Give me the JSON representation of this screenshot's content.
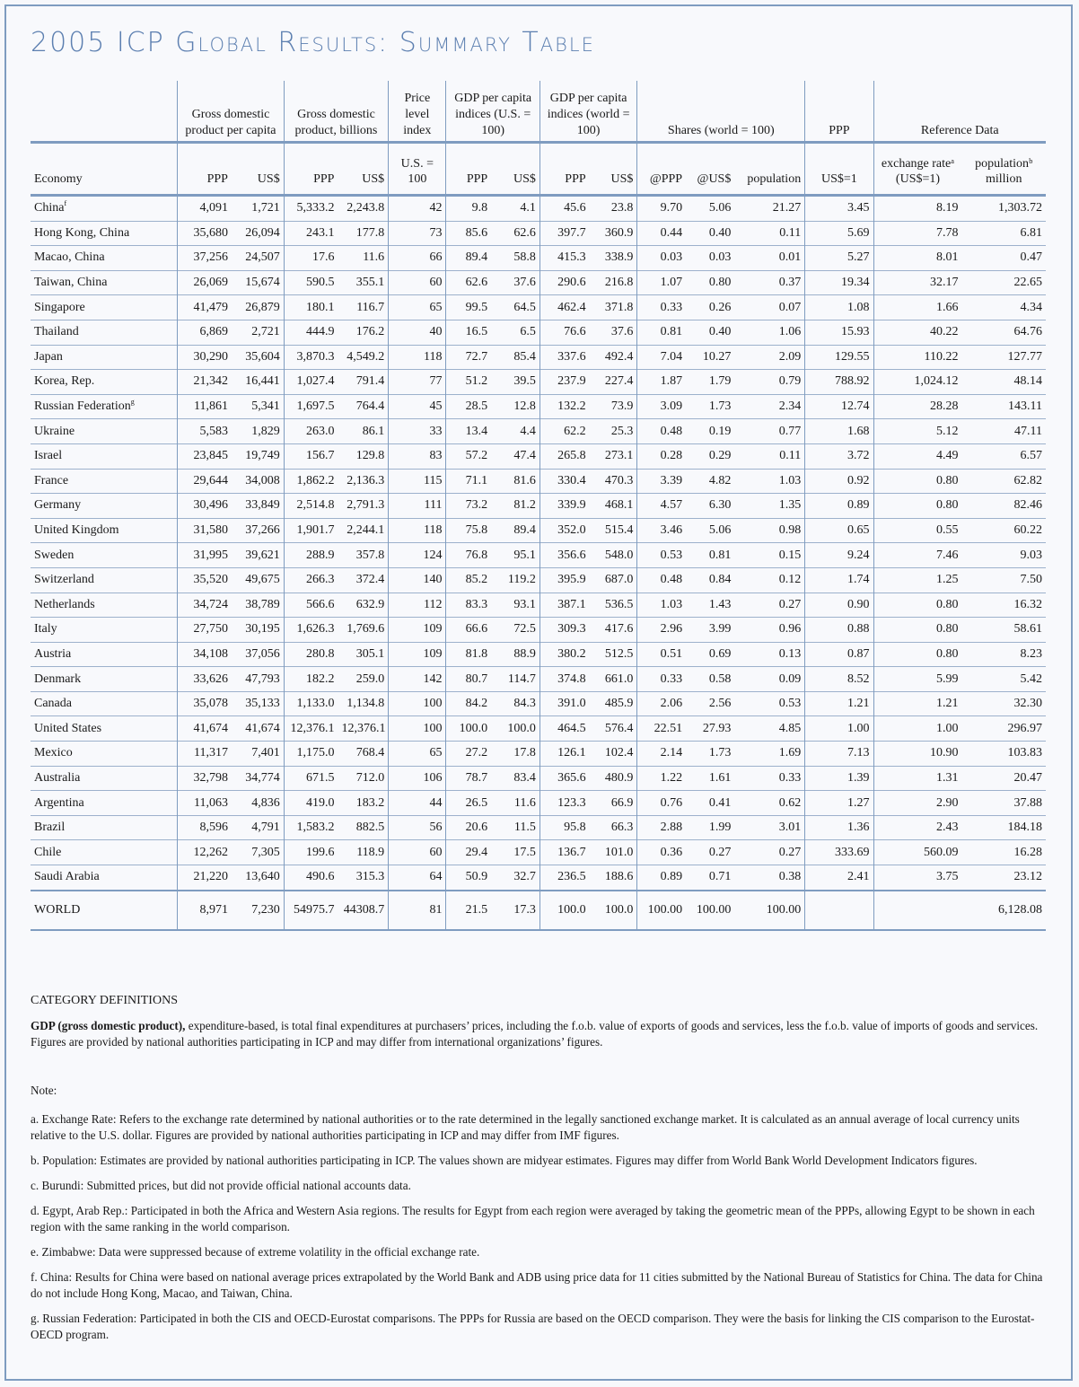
{
  "title": "2005 ICP Global Results: Summary Table",
  "headers": {
    "group": [
      "",
      "Gross domestic product per capita",
      "Gross domestic product, billions",
      "Price level index",
      "GDP per capita indices (U.S. = 100)",
      "GDP per capita indices (world = 100)",
      "Shares (world = 100)",
      "PPP",
      "Reference Data"
    ],
    "sub": [
      "Economy",
      "PPP",
      "US$",
      "PPP",
      "US$",
      "U.S. = 100",
      "PPP",
      "US$",
      "PPP",
      "US$",
      "@PPP",
      "@US$",
      "population",
      "US$=1",
      "exchange rateᵃ (US$=1)",
      "populationᵇ million"
    ]
  },
  "rows": [
    {
      "econ": "China",
      "sup": "f",
      "v": [
        "4,091",
        "1,721",
        "5,333.2",
        "2,243.8",
        "42",
        "9.8",
        "4.1",
        "45.6",
        "23.8",
        "9.70",
        "5.06",
        "21.27",
        "3.45",
        "8.19",
        "1,303.72"
      ]
    },
    {
      "econ": "Hong Kong, China",
      "sup": "",
      "v": [
        "35,680",
        "26,094",
        "243.1",
        "177.8",
        "73",
        "85.6",
        "62.6",
        "397.7",
        "360.9",
        "0.44",
        "0.40",
        "0.11",
        "5.69",
        "7.78",
        "6.81"
      ]
    },
    {
      "econ": "Macao, China",
      "sup": "",
      "v": [
        "37,256",
        "24,507",
        "17.6",
        "11.6",
        "66",
        "89.4",
        "58.8",
        "415.3",
        "338.9",
        "0.03",
        "0.03",
        "0.01",
        "5.27",
        "8.01",
        "0.47"
      ]
    },
    {
      "econ": "Taiwan, China",
      "sup": "",
      "v": [
        "26,069",
        "15,674",
        "590.5",
        "355.1",
        "60",
        "62.6",
        "37.6",
        "290.6",
        "216.8",
        "1.07",
        "0.80",
        "0.37",
        "19.34",
        "32.17",
        "22.65"
      ]
    },
    {
      "econ": "Singapore",
      "sup": "",
      "v": [
        "41,479",
        "26,879",
        "180.1",
        "116.7",
        "65",
        "99.5",
        "64.5",
        "462.4",
        "371.8",
        "0.33",
        "0.26",
        "0.07",
        "1.08",
        "1.66",
        "4.34"
      ]
    },
    {
      "econ": "Thailand",
      "sup": "",
      "v": [
        "6,869",
        "2,721",
        "444.9",
        "176.2",
        "40",
        "16.5",
        "6.5",
        "76.6",
        "37.6",
        "0.81",
        "0.40",
        "1.06",
        "15.93",
        "40.22",
        "64.76"
      ]
    },
    {
      "econ": "Japan",
      "sup": "",
      "v": [
        "30,290",
        "35,604",
        "3,870.3",
        "4,549.2",
        "118",
        "72.7",
        "85.4",
        "337.6",
        "492.4",
        "7.04",
        "10.27",
        "2.09",
        "129.55",
        "110.22",
        "127.77"
      ]
    },
    {
      "econ": "Korea, Rep.",
      "sup": "",
      "v": [
        "21,342",
        "16,441",
        "1,027.4",
        "791.4",
        "77",
        "51.2",
        "39.5",
        "237.9",
        "227.4",
        "1.87",
        "1.79",
        "0.79",
        "788.92",
        "1,024.12",
        "48.14"
      ]
    },
    {
      "econ": "Russian Federation",
      "sup": "g",
      "v": [
        "11,861",
        "5,341",
        "1,697.5",
        "764.4",
        "45",
        "28.5",
        "12.8",
        "132.2",
        "73.9",
        "3.09",
        "1.73",
        "2.34",
        "12.74",
        "28.28",
        "143.11"
      ]
    },
    {
      "econ": "Ukraine",
      "sup": "",
      "v": [
        "5,583",
        "1,829",
        "263.0",
        "86.1",
        "33",
        "13.4",
        "4.4",
        "62.2",
        "25.3",
        "0.48",
        "0.19",
        "0.77",
        "1.68",
        "5.12",
        "47.11"
      ]
    },
    {
      "econ": "Israel",
      "sup": "",
      "v": [
        "23,845",
        "19,749",
        "156.7",
        "129.8",
        "83",
        "57.2",
        "47.4",
        "265.8",
        "273.1",
        "0.28",
        "0.29",
        "0.11",
        "3.72",
        "4.49",
        "6.57"
      ]
    },
    {
      "econ": "France",
      "sup": "",
      "v": [
        "29,644",
        "34,008",
        "1,862.2",
        "2,136.3",
        "115",
        "71.1",
        "81.6",
        "330.4",
        "470.3",
        "3.39",
        "4.82",
        "1.03",
        "0.92",
        "0.80",
        "62.82"
      ]
    },
    {
      "econ": "Germany",
      "sup": "",
      "v": [
        "30,496",
        "33,849",
        "2,514.8",
        "2,791.3",
        "111",
        "73.2",
        "81.2",
        "339.9",
        "468.1",
        "4.57",
        "6.30",
        "1.35",
        "0.89",
        "0.80",
        "82.46"
      ]
    },
    {
      "econ": "United Kingdom",
      "sup": "",
      "v": [
        "31,580",
        "37,266",
        "1,901.7",
        "2,244.1",
        "118",
        "75.8",
        "89.4",
        "352.0",
        "515.4",
        "3.46",
        "5.06",
        "0.98",
        "0.65",
        "0.55",
        "60.22"
      ]
    },
    {
      "econ": "Sweden",
      "sup": "",
      "v": [
        "31,995",
        "39,621",
        "288.9",
        "357.8",
        "124",
        "76.8",
        "95.1",
        "356.6",
        "548.0",
        "0.53",
        "0.81",
        "0.15",
        "9.24",
        "7.46",
        "9.03"
      ]
    },
    {
      "econ": "Switzerland",
      "sup": "",
      "v": [
        "35,520",
        "49,675",
        "266.3",
        "372.4",
        "140",
        "85.2",
        "119.2",
        "395.9",
        "687.0",
        "0.48",
        "0.84",
        "0.12",
        "1.74",
        "1.25",
        "7.50"
      ]
    },
    {
      "econ": "Netherlands",
      "sup": "",
      "v": [
        "34,724",
        "38,789",
        "566.6",
        "632.9",
        "112",
        "83.3",
        "93.1",
        "387.1",
        "536.5",
        "1.03",
        "1.43",
        "0.27",
        "0.90",
        "0.80",
        "16.32"
      ]
    },
    {
      "econ": "Italy",
      "sup": "",
      "v": [
        "27,750",
        "30,195",
        "1,626.3",
        "1,769.6",
        "109",
        "66.6",
        "72.5",
        "309.3",
        "417.6",
        "2.96",
        "3.99",
        "0.96",
        "0.88",
        "0.80",
        "58.61"
      ]
    },
    {
      "econ": "Austria",
      "sup": "",
      "v": [
        "34,108",
        "37,056",
        "280.8",
        "305.1",
        "109",
        "81.8",
        "88.9",
        "380.2",
        "512.5",
        "0.51",
        "0.69",
        "0.13",
        "0.87",
        "0.80",
        "8.23"
      ]
    },
    {
      "econ": "Denmark",
      "sup": "",
      "v": [
        "33,626",
        "47,793",
        "182.2",
        "259.0",
        "142",
        "80.7",
        "114.7",
        "374.8",
        "661.0",
        "0.33",
        "0.58",
        "0.09",
        "8.52",
        "5.99",
        "5.42"
      ]
    },
    {
      "econ": "Canada",
      "sup": "",
      "v": [
        "35,078",
        "35,133",
        "1,133.0",
        "1,134.8",
        "100",
        "84.2",
        "84.3",
        "391.0",
        "485.9",
        "2.06",
        "2.56",
        "0.53",
        "1.21",
        "1.21",
        "32.30"
      ]
    },
    {
      "econ": "United States",
      "sup": "",
      "v": [
        "41,674",
        "41,674",
        "12,376.1",
        "12,376.1",
        "100",
        "100.0",
        "100.0",
        "464.5",
        "576.4",
        "22.51",
        "27.93",
        "4.85",
        "1.00",
        "1.00",
        "296.97"
      ]
    },
    {
      "econ": "Mexico",
      "sup": "",
      "v": [
        "11,317",
        "7,401",
        "1,175.0",
        "768.4",
        "65",
        "27.2",
        "17.8",
        "126.1",
        "102.4",
        "2.14",
        "1.73",
        "1.69",
        "7.13",
        "10.90",
        "103.83"
      ]
    },
    {
      "econ": "Australia",
      "sup": "",
      "v": [
        "32,798",
        "34,774",
        "671.5",
        "712.0",
        "106",
        "78.7",
        "83.4",
        "365.6",
        "480.9",
        "1.22",
        "1.61",
        "0.33",
        "1.39",
        "1.31",
        "20.47"
      ]
    },
    {
      "econ": "Argentina",
      "sup": "",
      "v": [
        "11,063",
        "4,836",
        "419.0",
        "183.2",
        "44",
        "26.5",
        "11.6",
        "123.3",
        "66.9",
        "0.76",
        "0.41",
        "0.62",
        "1.27",
        "2.90",
        "37.88"
      ]
    },
    {
      "econ": "Brazil",
      "sup": "",
      "v": [
        "8,596",
        "4,791",
        "1,583.2",
        "882.5",
        "56",
        "20.6",
        "11.5",
        "95.8",
        "66.3",
        "2.88",
        "1.99",
        "3.01",
        "1.36",
        "2.43",
        "184.18"
      ]
    },
    {
      "econ": "Chile",
      "sup": "",
      "v": [
        "12,262",
        "7,305",
        "199.6",
        "118.9",
        "60",
        "29.4",
        "17.5",
        "136.7",
        "101.0",
        "0.36",
        "0.27",
        "0.27",
        "333.69",
        "560.09",
        "16.28"
      ]
    },
    {
      "econ": "Saudi Arabia",
      "sup": "",
      "v": [
        "21,220",
        "13,640",
        "490.6",
        "315.3",
        "64",
        "50.9",
        "32.7",
        "236.5",
        "188.6",
        "0.89",
        "0.71",
        "0.38",
        "2.41",
        "3.75",
        "23.12"
      ]
    }
  ],
  "world": {
    "econ": "WORLD",
    "v": [
      "8,971",
      "7,230",
      "54975.7",
      "44308.7",
      "81",
      "21.5",
      "17.3",
      "100.0",
      "100.0",
      "100.00",
      "100.00",
      "100.00",
      "",
      "",
      "6,128.08"
    ]
  },
  "category": {
    "heading": "CATEGORY DEFINITIONS",
    "gdp_term": "GDP (gross domestic product),",
    "gdp_text": " expenditure-based, is total final expenditures at purchasers’ prices, including the f.o.b. value of exports of goods and services, less the f.o.b. value of imports of goods and services. Figures are provided by national authorities participating in ICP and may differ from international organizations’ figures."
  },
  "notes": {
    "label": "Note:",
    "items": [
      "a. Exchange Rate: Refers to the exchange rate determined by national authorities or to the rate determined in the legally sanctioned exchange market. It is calculated as an annual average of local currency units relative to the U.S. dollar. Figures are provided by national authorities participating in ICP and may differ from IMF figures.",
      "b. Population: Estimates are provided by national authorities participating in ICP. The values shown are midyear estimates. Figures may differ from World Bank World Development Indicators figures.",
      "c. Burundi: Submitted prices, but did not provide official national accounts data.",
      "d. Egypt, Arab Rep.: Participated in both the Africa and Western Asia regions. The results for Egypt from each region were averaged by taking the geometric mean of the PPPs, allowing Egypt to be shown in each region with the same ranking in the world comparison.",
      "e. Zimbabwe: Data were suppressed because of extreme volatility in the official exchange rate.",
      "f. China: Results for China were based on national average prices extrapolated by the World Bank and ADB using price data for 11 cities submitted by the National Bureau of Statistics for China. The data for China do not include Hong Kong, Macao, and Taiwan, China.",
      "g. Russian Federation: Participated in both the CIS and OECD-Eurostat comparisons. The PPPs for Russia are based on the OECD comparison. They were the basis for linking the CIS comparison to the Eurostat-OECD program."
    ]
  }
}
